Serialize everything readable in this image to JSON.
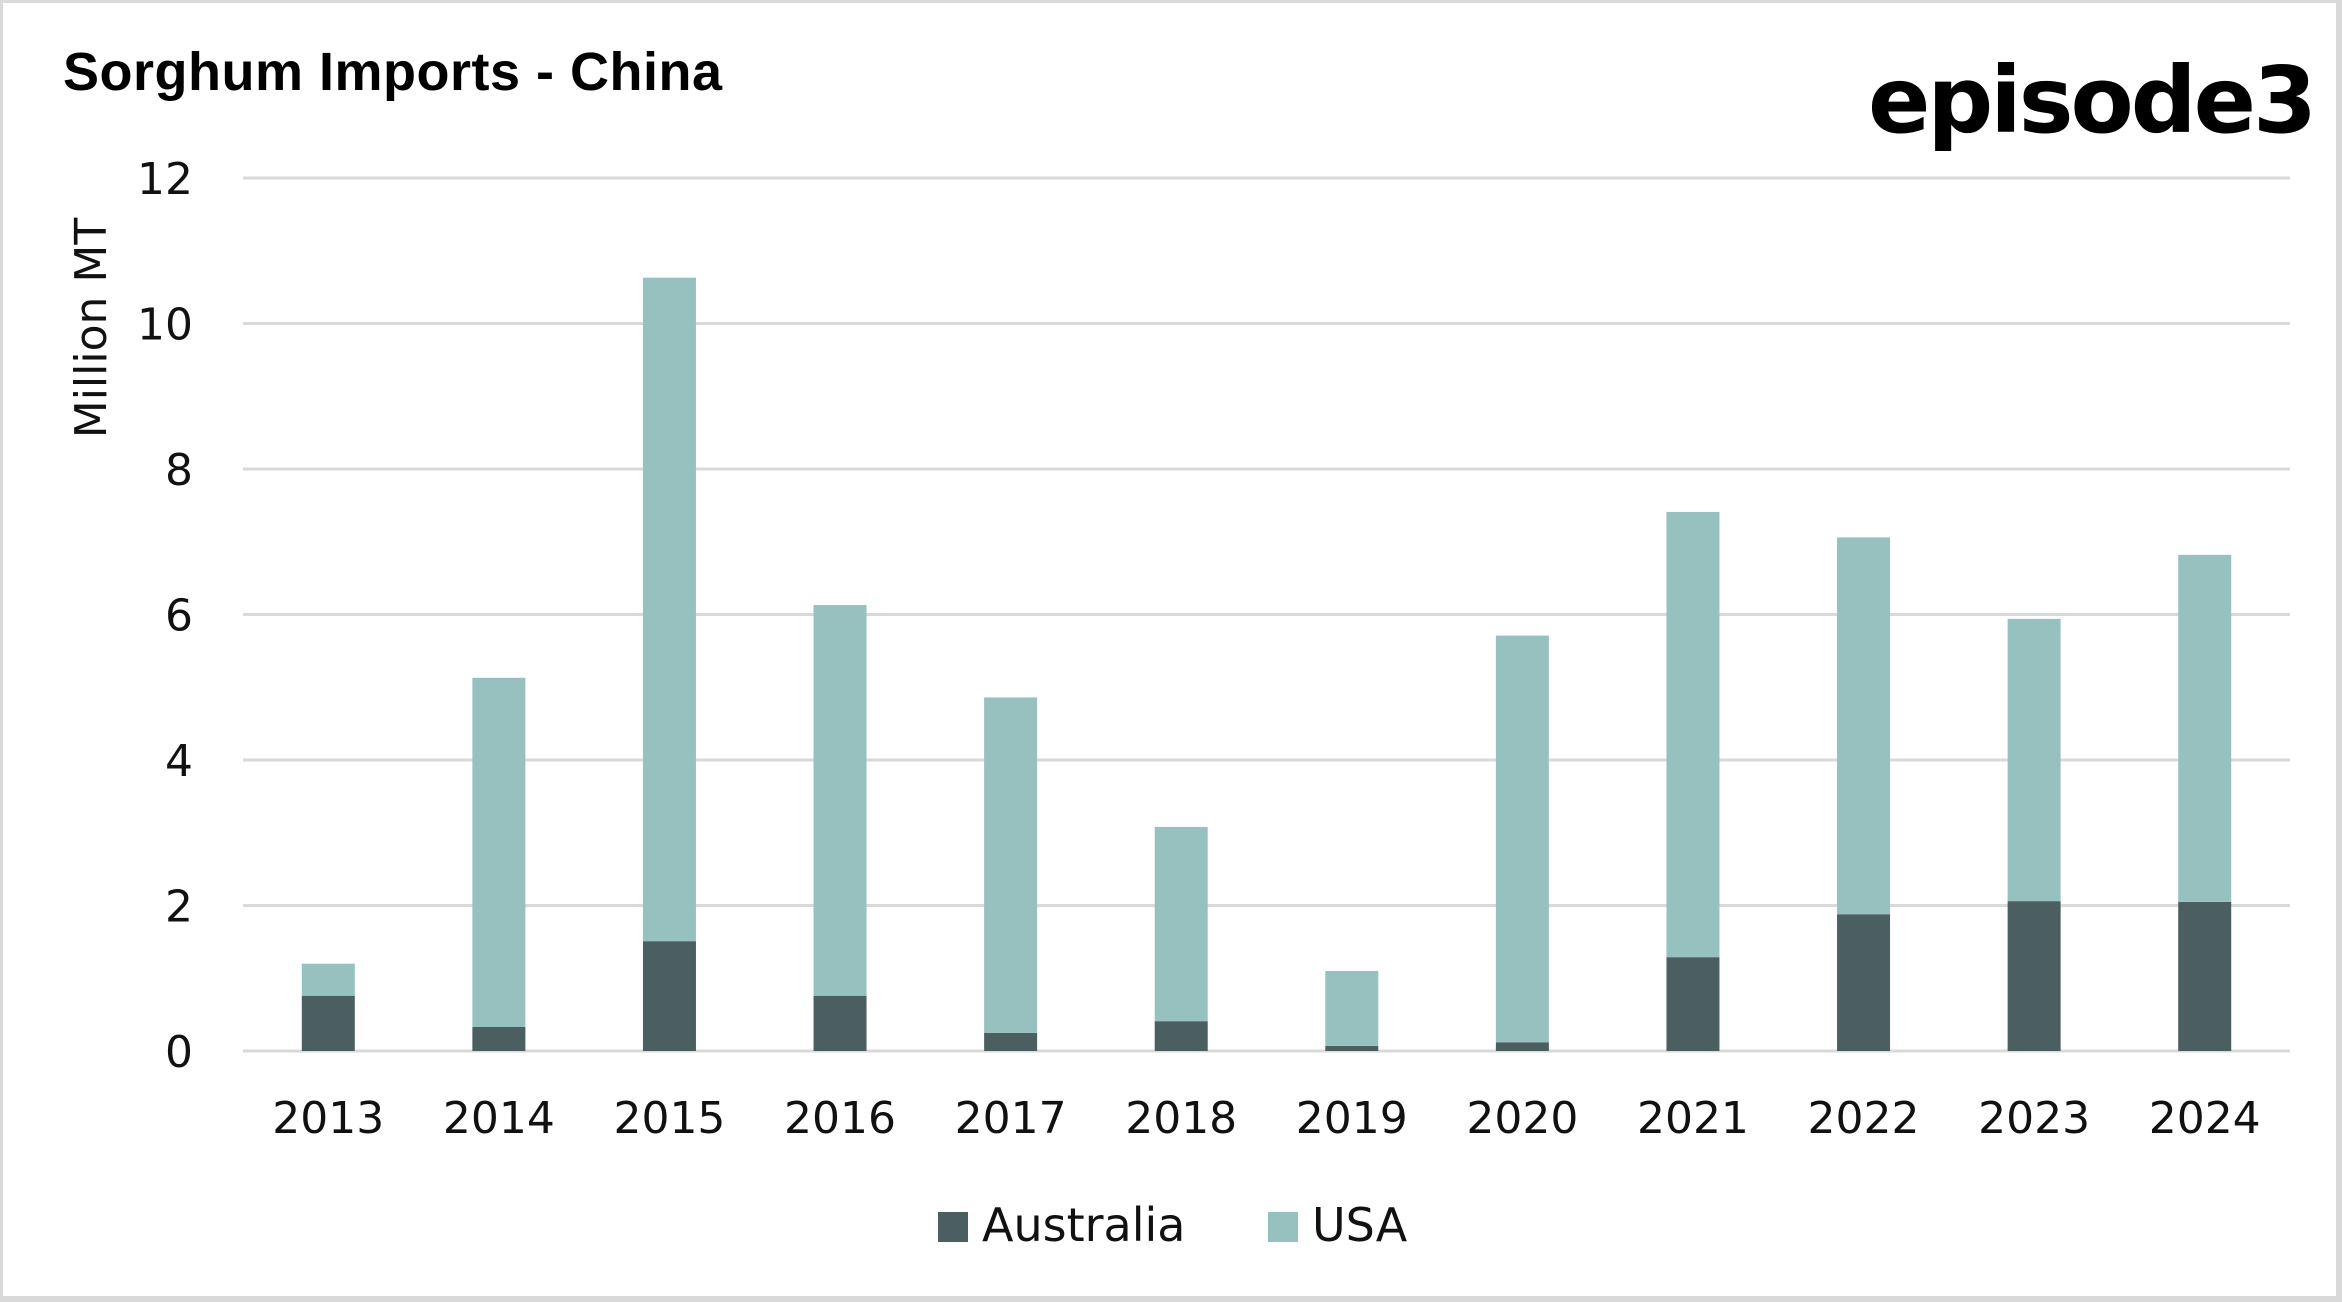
{
  "title": "Sorghum Imports - China",
  "brand": "episode3",
  "colors": {
    "Australia": "#4b5e60",
    "USA": "#96c1bf",
    "grid": "#d9d9d9"
  },
  "chart_data": {
    "type": "bar",
    "stacked": true,
    "title": "Sorghum Imports - China",
    "xlabel": "",
    "ylabel": "Million MT",
    "ylim": [
      0,
      12
    ],
    "yticks": [
      0,
      2,
      4,
      6,
      8,
      10,
      12
    ],
    "grid": true,
    "legend_position": "bottom",
    "categories": [
      "2013",
      "2014",
      "2015",
      "2016",
      "2017",
      "2018",
      "2019",
      "2020",
      "2021",
      "2022",
      "2023",
      "2024"
    ],
    "series": [
      {
        "name": "Australia",
        "values": [
          0.76,
          0.33,
          1.51,
          0.76,
          0.25,
          0.41,
          0.07,
          0.12,
          1.29,
          1.88,
          2.06,
          2.05
        ]
      },
      {
        "name": "USA",
        "values": [
          0.44,
          4.8,
          9.12,
          5.37,
          4.61,
          2.67,
          1.03,
          5.59,
          6.12,
          5.18,
          3.88,
          4.77
        ]
      }
    ]
  }
}
